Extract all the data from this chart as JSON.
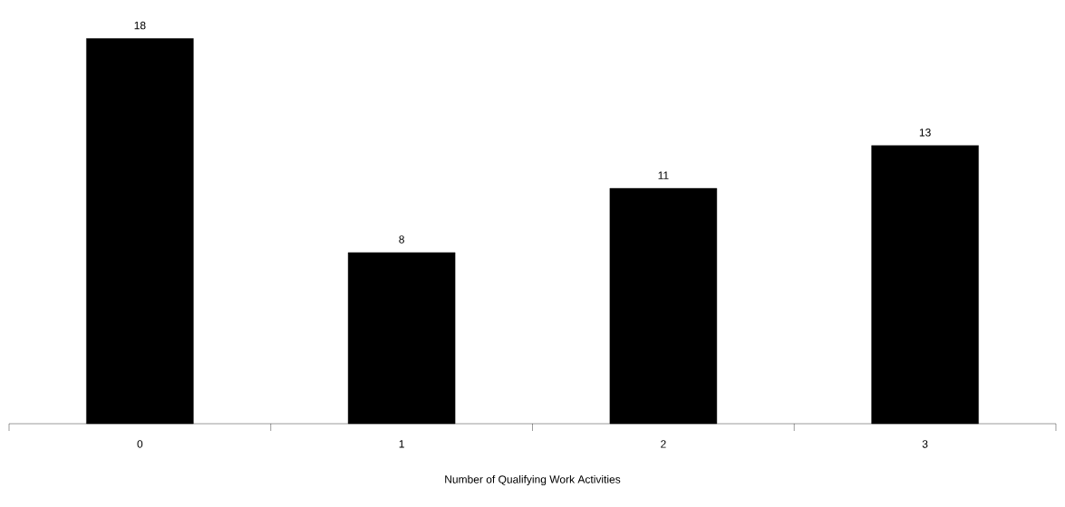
{
  "chart_data": {
    "type": "bar",
    "xlabel": "Number of Qualifying Work Activities",
    "categories": [
      "0",
      "1",
      "2",
      "3"
    ],
    "values": [
      18,
      8,
      11,
      13
    ],
    "color": "#000000",
    "data_labels": true
  }
}
